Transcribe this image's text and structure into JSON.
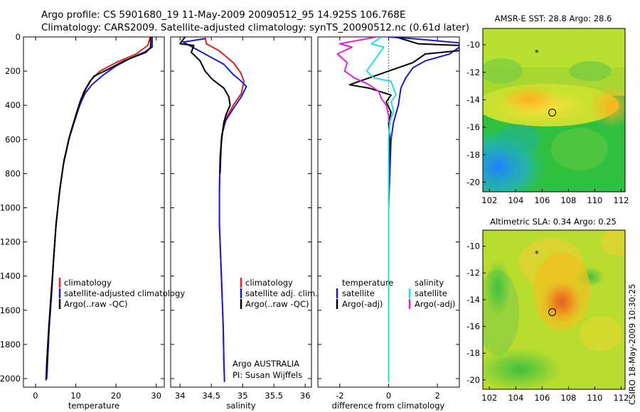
{
  "header": {
    "line1": "Argo profile: CS 5901680_19 11-May-2009 20090512_95 14.925S 106.768E",
    "line2": "Climatology: CARS2009. Satellite-adjusted climatology: synTS_20090512.nc (0.61d later)"
  },
  "side_label": "CSIRO 18-May-2009 10:30:25",
  "colors": {
    "climatology": "#e02020",
    "satellite": "#1a1acc",
    "argo": "#000000",
    "argo_salinity": "#e020e0",
    "satellite_salinity": "#20e0e0"
  },
  "chart_data": [
    {
      "type": "line",
      "xlabel": "temperature",
      "ylabel": "",
      "xlim": [
        -3,
        32
      ],
      "ylim": [
        2050,
        0
      ],
      "xticks": [
        0,
        10,
        20,
        30
      ],
      "yticks": [
        0,
        200,
        400,
        600,
        800,
        1000,
        1200,
        1400,
        1600,
        1800,
        2000
      ],
      "legend": [
        "climatology",
        "satellite-adjusted climatology",
        "Argo(..raw -QC)"
      ],
      "series": [
        {
          "name": "climatology",
          "points": [
            [
              28.5,
              0
            ],
            [
              27.9,
              50
            ],
            [
              25,
              100
            ],
            [
              20,
              150
            ],
            [
              16,
              200
            ],
            [
              13.5,
              260
            ],
            [
              12,
              320
            ],
            [
              10.8,
              400
            ],
            [
              9.5,
              500
            ],
            [
              8.2,
              600
            ],
            [
              6.9,
              750
            ],
            [
              6,
              900
            ],
            [
              5.1,
              1100
            ],
            [
              4.5,
              1300
            ],
            [
              4,
              1500
            ],
            [
              3.4,
              1700
            ],
            [
              3,
              1900
            ],
            [
              2.8,
              2000
            ]
          ]
        },
        {
          "name": "satellite-adjusted climatology",
          "points": [
            [
              29,
              0
            ],
            [
              29,
              60
            ],
            [
              27,
              90
            ],
            [
              24,
              120
            ],
            [
              20,
              170
            ],
            [
              17,
              220
            ],
            [
              14,
              280
            ],
            [
              12.3,
              330
            ],
            [
              11,
              400
            ],
            [
              9.6,
              500
            ],
            [
              8.3,
              600
            ],
            [
              6.9,
              750
            ],
            [
              6,
              900
            ],
            [
              5.1,
              1100
            ],
            [
              4.5,
              1300
            ],
            [
              4,
              1500
            ],
            [
              3.4,
              1700
            ],
            [
              3,
              1900
            ],
            [
              2.8,
              2000
            ]
          ]
        },
        {
          "name": "Argo(..raw -QC)",
          "points": [
            [
              28.6,
              0
            ],
            [
              28.6,
              60
            ],
            [
              27.5,
              90
            ],
            [
              22,
              140
            ],
            [
              18,
              190
            ],
            [
              14.5,
              230
            ],
            [
              13.6,
              260
            ],
            [
              12.6,
              300
            ],
            [
              11.2,
              370
            ],
            [
              10,
              460
            ],
            [
              8.6,
              570
            ],
            [
              7.1,
              720
            ],
            [
              6,
              900
            ],
            [
              5.1,
              1100
            ],
            [
              4.5,
              1300
            ],
            [
              3.9,
              1500
            ],
            [
              3.3,
              1700
            ],
            [
              2.8,
              1900
            ],
            [
              2.6,
              2010
            ]
          ]
        }
      ]
    },
    {
      "type": "line",
      "xlabel": "salinity",
      "ylabel": "",
      "xlim": [
        33.85,
        36.1
      ],
      "ylim": [
        2050,
        0
      ],
      "xticks": [
        34,
        34.5,
        35,
        35.5,
        36
      ],
      "legend": [
        "climatology",
        "satellite adj. clim.",
        "Argo(..raw -QC)"
      ],
      "annotations": [
        "Argo AUSTRALIA",
        "PI: Susan Wijffels"
      ],
      "series": [
        {
          "name": "climatology",
          "points": [
            [
              34.4,
              0
            ],
            [
              34.42,
              40
            ],
            [
              34.62,
              80
            ],
            [
              34.85,
              150
            ],
            [
              34.97,
              210
            ],
            [
              35.02,
              260
            ],
            [
              34.98,
              330
            ],
            [
              34.85,
              400
            ],
            [
              34.73,
              480
            ],
            [
              34.68,
              560
            ],
            [
              34.64,
              700
            ],
            [
              34.63,
              900
            ],
            [
              34.63,
              1100
            ],
            [
              34.65,
              1300
            ],
            [
              34.67,
              1500
            ],
            [
              34.69,
              1700
            ],
            [
              34.7,
              1900
            ],
            [
              34.71,
              2000
            ]
          ]
        },
        {
          "name": "satellite adj. clim.",
          "points": [
            [
              34.4,
              10
            ],
            [
              34.05,
              30
            ],
            [
              34.2,
              60
            ],
            [
              34.45,
              110
            ],
            [
              34.7,
              160
            ],
            [
              34.85,
              220
            ],
            [
              34.95,
              250
            ],
            [
              35.06,
              290
            ],
            [
              34.98,
              350
            ],
            [
              34.85,
              420
            ],
            [
              34.73,
              490
            ],
            [
              34.67,
              570
            ],
            [
              34.64,
              700
            ],
            [
              34.63,
              900
            ],
            [
              34.63,
              1100
            ],
            [
              34.65,
              1300
            ],
            [
              34.67,
              1500
            ],
            [
              34.69,
              1700
            ],
            [
              34.7,
              1900
            ],
            [
              34.71,
              2020
            ]
          ]
        },
        {
          "name": "Argo(..raw -QC)",
          "points": [
            [
              34.08,
              0
            ],
            [
              34.0,
              40
            ],
            [
              34.22,
              50
            ],
            [
              34.18,
              90
            ],
            [
              34.32,
              140
            ],
            [
              34.4,
              200
            ],
            [
              34.52,
              250
            ],
            [
              34.7,
              300
            ],
            [
              34.78,
              350
            ],
            [
              34.8,
              400
            ],
            [
              34.74,
              450
            ],
            [
              34.7,
              500
            ],
            [
              34.66,
              600
            ],
            [
              34.64,
              800
            ]
          ]
        }
      ]
    },
    {
      "type": "line",
      "xlabel": "difference from climatology",
      "ylabel": "",
      "xlim": [
        -2.9,
        2.9
      ],
      "ylim": [
        2050,
        0
      ],
      "xticks": [
        -2,
        0,
        2
      ],
      "legend": [
        "temperature",
        "satellite",
        "Argo(-adj)",
        "salinity",
        "satellite",
        "Argo(-adj)"
      ],
      "series": [
        {
          "name": "temperature satellite",
          "points": [
            [
              0,
              0
            ],
            [
              1,
              10
            ],
            [
              2.9,
              35
            ],
            [
              2.9,
              60
            ],
            [
              2.5,
              100
            ],
            [
              1.5,
              140
            ],
            [
              1.0,
              180
            ],
            [
              0.7,
              240
            ],
            [
              0.5,
              300
            ],
            [
              0.4,
              400
            ],
            [
              0.2,
              500
            ],
            [
              0.1,
              600
            ],
            [
              0.05,
              800
            ],
            [
              0,
              1000
            ],
            [
              0,
              1200
            ],
            [
              0,
              1500
            ],
            [
              0,
              1800
            ],
            [
              0,
              2020
            ]
          ]
        },
        {
          "name": "temperature Argo(-adj)",
          "points": [
            [
              0.3,
              0
            ],
            [
              1.2,
              40
            ],
            [
              2.9,
              50
            ],
            [
              2.9,
              80
            ],
            [
              1.5,
              100
            ],
            [
              1.0,
              150
            ],
            [
              0,
              200
            ],
            [
              -1.0,
              250
            ],
            [
              -1.6,
              280
            ],
            [
              -0.8,
              300
            ],
            [
              0.1,
              340
            ],
            [
              -0.1,
              380
            ],
            [
              0.1,
              440
            ],
            [
              0,
              500
            ],
            [
              0.05,
              600
            ],
            [
              0,
              800
            ]
          ]
        },
        {
          "name": "salinity satellite",
          "points": [
            [
              -0.3,
              0
            ],
            [
              -0.7,
              40
            ],
            [
              -0.2,
              60
            ],
            [
              -0.5,
              120
            ],
            [
              -0.9,
              200
            ],
            [
              -0.6,
              240
            ],
            [
              0.1,
              260
            ],
            [
              0.2,
              300
            ],
            [
              0.3,
              340
            ],
            [
              0.1,
              380
            ],
            [
              0.2,
              430
            ],
            [
              0.05,
              500
            ],
            [
              0,
              600
            ],
            [
              0,
              700
            ],
            [
              0,
              800
            ],
            [
              0,
              1000
            ],
            [
              0,
              1500
            ],
            [
              0,
              2020
            ]
          ]
        },
        {
          "name": "salinity Argo(-adj)",
          "points": [
            [
              -0.5,
              0
            ],
            [
              -2.0,
              40
            ],
            [
              -1.5,
              60
            ],
            [
              -2.1,
              100
            ],
            [
              -1.7,
              150
            ],
            [
              -1.8,
              200
            ],
            [
              -1.4,
              240
            ],
            [
              -0.8,
              280
            ],
            [
              -0.4,
              320
            ],
            [
              -0.3,
              360
            ],
            [
              -0.1,
              400
            ],
            [
              0,
              460
            ],
            [
              0,
              500
            ]
          ]
        }
      ]
    },
    {
      "type": "heatmap",
      "title": "AMSR-E SST: 28.8 Argo: 28.6",
      "xlim": [
        101.5,
        112.3
      ],
      "ylim": [
        -20.7,
        -8.8
      ],
      "xticks": [
        102,
        104,
        106,
        108,
        110,
        112
      ],
      "yticks": [
        -10,
        -12,
        -14,
        -16,
        -18,
        -20
      ],
      "argo_position": [
        106.77,
        -14.93
      ],
      "marker_position": [
        105.6,
        -10.5
      ]
    },
    {
      "type": "heatmap",
      "title": "Altimetric SLA: 0.34 Argo: 0.25",
      "xlim": [
        101.5,
        112.3
      ],
      "ylim": [
        -20.7,
        -8.8
      ],
      "xticks": [
        102,
        104,
        106,
        108,
        110,
        112
      ],
      "yticks": [
        -10,
        -12,
        -14,
        -16,
        -18,
        -20
      ],
      "argo_position": [
        106.77,
        -14.93
      ],
      "marker_position": [
        105.6,
        -10.5
      ]
    }
  ]
}
